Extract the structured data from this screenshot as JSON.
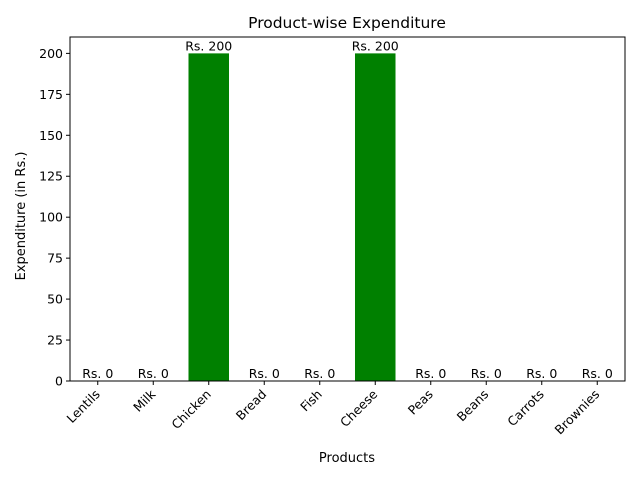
{
  "chart_data": {
    "type": "bar",
    "title": "Product-wise Expenditure",
    "xlabel": "Products",
    "ylabel": "Expenditure (in Rs.)",
    "categories": [
      "Lentils",
      "Milk",
      "Chicken",
      "Bread",
      "Fish",
      "Cheese",
      "Peas",
      "Beans",
      "Carrots",
      "Brownies"
    ],
    "values": [
      0,
      0,
      200,
      0,
      0,
      200,
      0,
      0,
      0,
      0
    ],
    "data_labels": [
      "Rs. 0",
      "Rs. 0",
      "Rs. 200",
      "Rs. 0",
      "Rs. 0",
      "Rs. 200",
      "Rs. 0",
      "Rs. 0",
      "Rs. 0",
      "Rs. 0"
    ],
    "ylim": [
      0,
      210
    ],
    "yticks": [
      0,
      25,
      50,
      75,
      100,
      125,
      150,
      175,
      200
    ],
    "bar_color": "#008000",
    "grid": false,
    "legend": false
  }
}
